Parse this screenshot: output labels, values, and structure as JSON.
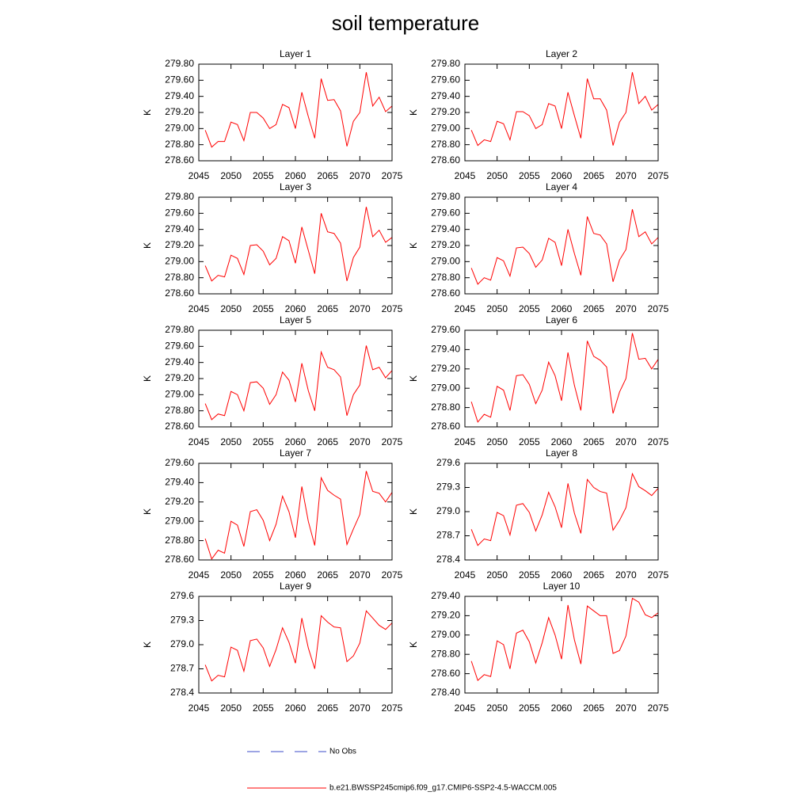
{
  "title": "soil temperature",
  "legend": [
    {
      "name": "No Obs",
      "color": "#3b4bc8",
      "dash": true
    },
    {
      "name": "b.e21.BWSSP245cmip6.f09_g17.CMIP6-SSP2-4.5-WACCM.005",
      "color": "#ff0000",
      "dash": false
    }
  ],
  "chart_data": [
    {
      "type": "line",
      "title": "Layer 1",
      "ylabel": "K",
      "xlim": [
        2045,
        2075
      ],
      "xticks": [
        2045,
        2050,
        2055,
        2060,
        2065,
        2070,
        2075
      ],
      "ylim": [
        278.6,
        279.8
      ],
      "yticks": [
        {
          "value": 278.6,
          "label": "278.60"
        },
        {
          "value": 278.8,
          "label": "278.80"
        },
        {
          "value": 279.0,
          "label": "279.00"
        },
        {
          "value": 279.2,
          "label": "279.20"
        },
        {
          "value": 279.4,
          "label": "279.40"
        },
        {
          "value": 279.6,
          "label": "279.60"
        },
        {
          "value": 279.8,
          "label": "279.80"
        }
      ],
      "x": [
        2046,
        2047,
        2048,
        2049,
        2050,
        2051,
        2052,
        2053,
        2054,
        2055,
        2056,
        2057,
        2058,
        2059,
        2060,
        2061,
        2062,
        2063,
        2064,
        2065,
        2066,
        2067,
        2068,
        2069,
        2070,
        2071,
        2072,
        2073,
        2074,
        2075
      ],
      "series": [
        {
          "color": "#ff0000",
          "values": [
            278.98,
            278.77,
            278.84,
            278.84,
            279.08,
            279.05,
            278.85,
            279.2,
            279.2,
            279.13,
            279.0,
            279.05,
            279.3,
            279.26,
            279.0,
            279.45,
            279.15,
            278.88,
            279.62,
            279.35,
            279.36,
            279.22,
            278.78,
            279.09,
            279.2,
            279.7,
            279.28,
            279.39,
            279.21,
            279.28
          ]
        }
      ]
    },
    {
      "type": "line",
      "title": "Layer 2",
      "ylabel": "K",
      "xlim": [
        2045,
        2075
      ],
      "xticks": [
        2045,
        2050,
        2055,
        2060,
        2065,
        2070,
        2075
      ],
      "ylim": [
        278.6,
        279.8
      ],
      "yticks": [
        {
          "value": 278.6,
          "label": "278.60"
        },
        {
          "value": 278.8,
          "label": "278.80"
        },
        {
          "value": 279.0,
          "label": "279.00"
        },
        {
          "value": 279.2,
          "label": "279.20"
        },
        {
          "value": 279.4,
          "label": "279.40"
        },
        {
          "value": 279.6,
          "label": "279.60"
        },
        {
          "value": 279.8,
          "label": "279.80"
        }
      ],
      "x": [
        2046,
        2047,
        2048,
        2049,
        2050,
        2051,
        2052,
        2053,
        2054,
        2055,
        2056,
        2057,
        2058,
        2059,
        2060,
        2061,
        2062,
        2063,
        2064,
        2065,
        2066,
        2067,
        2068,
        2069,
        2070,
        2071,
        2072,
        2073,
        2074,
        2075
      ],
      "series": [
        {
          "color": "#ff0000",
          "values": [
            278.98,
            278.79,
            278.86,
            278.84,
            279.09,
            279.06,
            278.86,
            279.21,
            279.21,
            279.16,
            279.0,
            279.05,
            279.31,
            279.28,
            279.0,
            279.45,
            279.16,
            278.88,
            279.62,
            279.37,
            279.37,
            279.23,
            278.79,
            279.08,
            279.2,
            279.7,
            279.31,
            279.4,
            279.23,
            279.3
          ]
        }
      ]
    },
    {
      "type": "line",
      "title": "Layer 3",
      "ylabel": "K",
      "xlim": [
        2045,
        2075
      ],
      "xticks": [
        2045,
        2050,
        2055,
        2060,
        2065,
        2070,
        2075
      ],
      "ylim": [
        278.6,
        279.8
      ],
      "yticks": [
        {
          "value": 278.6,
          "label": "278.60"
        },
        {
          "value": 278.8,
          "label": "278.80"
        },
        {
          "value": 279.0,
          "label": "279.00"
        },
        {
          "value": 279.2,
          "label": "279.20"
        },
        {
          "value": 279.4,
          "label": "279.40"
        },
        {
          "value": 279.6,
          "label": "279.60"
        },
        {
          "value": 279.8,
          "label": "279.80"
        }
      ],
      "x": [
        2046,
        2047,
        2048,
        2049,
        2050,
        2051,
        2052,
        2053,
        2054,
        2055,
        2056,
        2057,
        2058,
        2059,
        2060,
        2061,
        2062,
        2063,
        2064,
        2065,
        2066,
        2067,
        2068,
        2069,
        2070,
        2071,
        2072,
        2073,
        2074,
        2075
      ],
      "series": [
        {
          "color": "#ff0000",
          "values": [
            278.95,
            278.76,
            278.83,
            278.81,
            279.08,
            279.04,
            278.84,
            279.2,
            279.21,
            279.13,
            278.96,
            279.04,
            279.31,
            279.26,
            278.98,
            279.43,
            279.14,
            278.85,
            279.6,
            279.37,
            279.35,
            279.23,
            278.76,
            279.05,
            279.18,
            279.68,
            279.31,
            279.39,
            279.24,
            279.3
          ]
        }
      ]
    },
    {
      "type": "line",
      "title": "Layer 4",
      "ylabel": "K",
      "xlim": [
        2045,
        2075
      ],
      "xticks": [
        2045,
        2050,
        2055,
        2060,
        2065,
        2070,
        2075
      ],
      "ylim": [
        278.6,
        279.8
      ],
      "yticks": [
        {
          "value": 278.6,
          "label": "278.60"
        },
        {
          "value": 278.8,
          "label": "278.80"
        },
        {
          "value": 279.0,
          "label": "279.00"
        },
        {
          "value": 279.2,
          "label": "279.20"
        },
        {
          "value": 279.4,
          "label": "279.40"
        },
        {
          "value": 279.6,
          "label": "279.60"
        },
        {
          "value": 279.8,
          "label": "279.80"
        }
      ],
      "x": [
        2046,
        2047,
        2048,
        2049,
        2050,
        2051,
        2052,
        2053,
        2054,
        2055,
        2056,
        2057,
        2058,
        2059,
        2060,
        2061,
        2062,
        2063,
        2064,
        2065,
        2066,
        2067,
        2068,
        2069,
        2070,
        2071,
        2072,
        2073,
        2074,
        2075
      ],
      "series": [
        {
          "color": "#ff0000",
          "values": [
            278.92,
            278.72,
            278.8,
            278.77,
            279.05,
            279.01,
            278.82,
            279.17,
            279.18,
            279.1,
            278.93,
            279.02,
            279.29,
            279.24,
            278.95,
            279.4,
            279.1,
            278.83,
            279.56,
            279.35,
            279.33,
            279.22,
            278.75,
            279.02,
            279.15,
            279.65,
            279.31,
            279.37,
            279.22,
            279.3
          ]
        }
      ]
    },
    {
      "type": "line",
      "title": "Layer 5",
      "ylabel": "K",
      "xlim": [
        2045,
        2075
      ],
      "xticks": [
        2045,
        2050,
        2055,
        2060,
        2065,
        2070,
        2075
      ],
      "ylim": [
        278.6,
        279.8
      ],
      "yticks": [
        {
          "value": 278.6,
          "label": "278.60"
        },
        {
          "value": 278.8,
          "label": "278.80"
        },
        {
          "value": 279.0,
          "label": "279.00"
        },
        {
          "value": 279.2,
          "label": "279.20"
        },
        {
          "value": 279.4,
          "label": "279.40"
        },
        {
          "value": 279.6,
          "label": "279.60"
        },
        {
          "value": 279.8,
          "label": "279.80"
        }
      ],
      "x": [
        2046,
        2047,
        2048,
        2049,
        2050,
        2051,
        2052,
        2053,
        2054,
        2055,
        2056,
        2057,
        2058,
        2059,
        2060,
        2061,
        2062,
        2063,
        2064,
        2065,
        2066,
        2067,
        2068,
        2069,
        2070,
        2071,
        2072,
        2073,
        2074,
        2075
      ],
      "series": [
        {
          "color": "#ff0000",
          "values": [
            278.89,
            278.69,
            278.76,
            278.74,
            279.04,
            279.0,
            278.8,
            279.15,
            279.16,
            279.08,
            278.88,
            279.0,
            279.28,
            279.18,
            278.91,
            279.39,
            279.05,
            278.8,
            279.53,
            279.34,
            279.31,
            279.22,
            278.74,
            279.0,
            279.12,
            279.61,
            279.31,
            279.34,
            279.21,
            279.3
          ]
        }
      ]
    },
    {
      "type": "line",
      "title": "Layer 6",
      "ylabel": "K",
      "xlim": [
        2045,
        2075
      ],
      "xticks": [
        2045,
        2050,
        2055,
        2060,
        2065,
        2070,
        2075
      ],
      "ylim": [
        278.6,
        279.6
      ],
      "yticks": [
        {
          "value": 278.6,
          "label": "278.60"
        },
        {
          "value": 278.8,
          "label": "278.80"
        },
        {
          "value": 279.0,
          "label": "279.00"
        },
        {
          "value": 279.2,
          "label": "279.20"
        },
        {
          "value": 279.4,
          "label": "279.40"
        },
        {
          "value": 279.6,
          "label": "279.60"
        }
      ],
      "x": [
        2046,
        2047,
        2048,
        2049,
        2050,
        2051,
        2052,
        2053,
        2054,
        2055,
        2056,
        2057,
        2058,
        2059,
        2060,
        2061,
        2062,
        2063,
        2064,
        2065,
        2066,
        2067,
        2068,
        2069,
        2070,
        2071,
        2072,
        2073,
        2074,
        2075
      ],
      "series": [
        {
          "color": "#ff0000",
          "values": [
            278.86,
            278.65,
            278.73,
            278.7,
            279.02,
            278.98,
            278.77,
            279.13,
            279.14,
            279.04,
            278.84,
            278.98,
            279.27,
            279.13,
            278.87,
            279.37,
            279.03,
            278.77,
            279.49,
            279.33,
            279.29,
            279.22,
            278.74,
            278.96,
            279.1,
            279.57,
            279.3,
            279.31,
            279.2,
            279.3
          ]
        }
      ]
    },
    {
      "type": "line",
      "title": "Layer 7",
      "ylabel": "K",
      "xlim": [
        2045,
        2075
      ],
      "xticks": [
        2045,
        2050,
        2055,
        2060,
        2065,
        2070,
        2075
      ],
      "ylim": [
        278.6,
        279.6
      ],
      "yticks": [
        {
          "value": 278.6,
          "label": "278.60"
        },
        {
          "value": 278.8,
          "label": "278.80"
        },
        {
          "value": 279.0,
          "label": "279.00"
        },
        {
          "value": 279.2,
          "label": "279.20"
        },
        {
          "value": 279.4,
          "label": "279.40"
        },
        {
          "value": 279.6,
          "label": "279.60"
        }
      ],
      "x": [
        2046,
        2047,
        2048,
        2049,
        2050,
        2051,
        2052,
        2053,
        2054,
        2055,
        2056,
        2057,
        2058,
        2059,
        2060,
        2061,
        2062,
        2063,
        2064,
        2065,
        2066,
        2067,
        2068,
        2069,
        2070,
        2071,
        2072,
        2073,
        2074,
        2075
      ],
      "series": [
        {
          "color": "#ff0000",
          "values": [
            278.82,
            278.61,
            278.7,
            278.67,
            279.0,
            278.96,
            278.74,
            279.1,
            279.12,
            279.01,
            278.8,
            278.97,
            279.26,
            279.1,
            278.83,
            279.36,
            279.0,
            278.75,
            279.45,
            279.32,
            279.27,
            279.23,
            278.76,
            278.92,
            279.07,
            279.52,
            279.31,
            279.29,
            279.2,
            279.3
          ]
        }
      ]
    },
    {
      "type": "line",
      "title": "Layer 8",
      "ylabel": "K",
      "xlim": [
        2045,
        2075
      ],
      "xticks": [
        2045,
        2050,
        2055,
        2060,
        2065,
        2070,
        2075
      ],
      "ylim": [
        278.4,
        279.6
      ],
      "yticks": [
        278.4,
        278.7,
        {
          "value": 279.0,
          "label": "279.0"
        },
        279.3,
        279.6
      ],
      "x": [
        2046,
        2047,
        2048,
        2049,
        2050,
        2051,
        2052,
        2053,
        2054,
        2055,
        2056,
        2057,
        2058,
        2059,
        2060,
        2061,
        2062,
        2063,
        2064,
        2065,
        2066,
        2067,
        2068,
        2069,
        2070,
        2071,
        2072,
        2073,
        2074,
        2075
      ],
      "series": [
        {
          "color": "#ff0000",
          "values": [
            278.78,
            278.58,
            278.66,
            278.64,
            278.99,
            278.95,
            278.71,
            279.08,
            279.1,
            278.99,
            278.76,
            278.96,
            279.24,
            279.06,
            278.8,
            279.35,
            278.98,
            278.73,
            279.4,
            279.3,
            279.25,
            279.23,
            278.77,
            278.89,
            279.05,
            279.47,
            279.31,
            279.26,
            279.2,
            279.29
          ]
        }
      ]
    },
    {
      "type": "line",
      "title": "Layer 9",
      "ylabel": "K",
      "xlim": [
        2045,
        2075
      ],
      "xticks": [
        2045,
        2050,
        2055,
        2060,
        2065,
        2070,
        2075
      ],
      "ylim": [
        278.4,
        279.6
      ],
      "yticks": [
        278.4,
        278.7,
        {
          "value": 279.0,
          "label": "279.0"
        },
        279.3,
        279.6
      ],
      "x": [
        2046,
        2047,
        2048,
        2049,
        2050,
        2051,
        2052,
        2053,
        2054,
        2055,
        2056,
        2057,
        2058,
        2059,
        2060,
        2061,
        2062,
        2063,
        2064,
        2065,
        2066,
        2067,
        2068,
        2069,
        2070,
        2071,
        2072,
        2073,
        2074,
        2075
      ],
      "series": [
        {
          "color": "#ff0000",
          "values": [
            278.75,
            278.55,
            278.62,
            278.6,
            278.97,
            278.93,
            278.67,
            279.05,
            279.07,
            278.96,
            278.73,
            278.94,
            279.21,
            279.03,
            278.77,
            279.33,
            278.96,
            278.7,
            279.36,
            279.28,
            279.22,
            279.21,
            278.79,
            278.86,
            279.02,
            279.42,
            279.33,
            279.24,
            279.19,
            279.27
          ]
        }
      ]
    },
    {
      "type": "line",
      "title": "Layer 10",
      "ylabel": "K",
      "xlim": [
        2045,
        2075
      ],
      "xticks": [
        2045,
        2050,
        2055,
        2060,
        2065,
        2070,
        2075
      ],
      "ylim": [
        278.4,
        279.4
      ],
      "yticks": [
        {
          "value": 278.4,
          "label": "278.40"
        },
        {
          "value": 278.6,
          "label": "278.60"
        },
        {
          "value": 278.8,
          "label": "278.80"
        },
        {
          "value": 279.0,
          "label": "279.00"
        },
        {
          "value": 279.2,
          "label": "279.20"
        },
        {
          "value": 279.4,
          "label": "279.40"
        }
      ],
      "x": [
        2046,
        2047,
        2048,
        2049,
        2050,
        2051,
        2052,
        2053,
        2054,
        2055,
        2056,
        2057,
        2058,
        2059,
        2060,
        2061,
        2062,
        2063,
        2064,
        2065,
        2066,
        2067,
        2068,
        2069,
        2070,
        2071,
        2072,
        2073,
        2074,
        2075
      ],
      "series": [
        {
          "color": "#ff0000",
          "values": [
            278.73,
            278.53,
            278.59,
            278.57,
            278.94,
            278.9,
            278.65,
            279.02,
            279.05,
            278.93,
            278.71,
            278.92,
            279.18,
            279.0,
            278.75,
            279.31,
            278.95,
            278.7,
            279.3,
            279.25,
            279.2,
            279.2,
            278.81,
            278.84,
            278.99,
            279.38,
            279.34,
            279.21,
            279.18,
            279.23
          ]
        }
      ]
    }
  ]
}
